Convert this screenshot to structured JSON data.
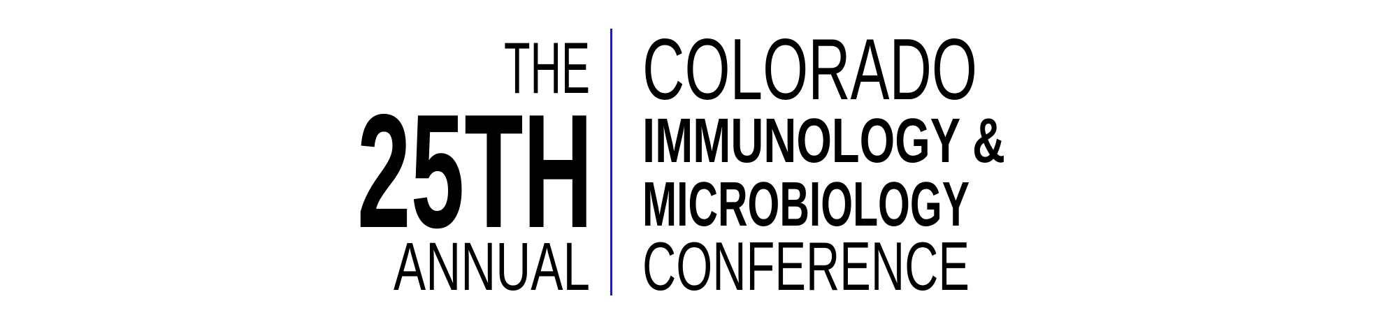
{
  "logo": {
    "left": {
      "prefix": "THE",
      "ordinal": "25TH",
      "suffix": "ANNUAL"
    },
    "right": {
      "line1": "COLORADO",
      "line2": "IMMUNOLOGY &",
      "line3": "MICROBIOLOGY",
      "line4": "CONFERENCE"
    },
    "colors": {
      "text": "#000000",
      "divider": "#1a1ad0",
      "background": "#ffffff"
    }
  }
}
